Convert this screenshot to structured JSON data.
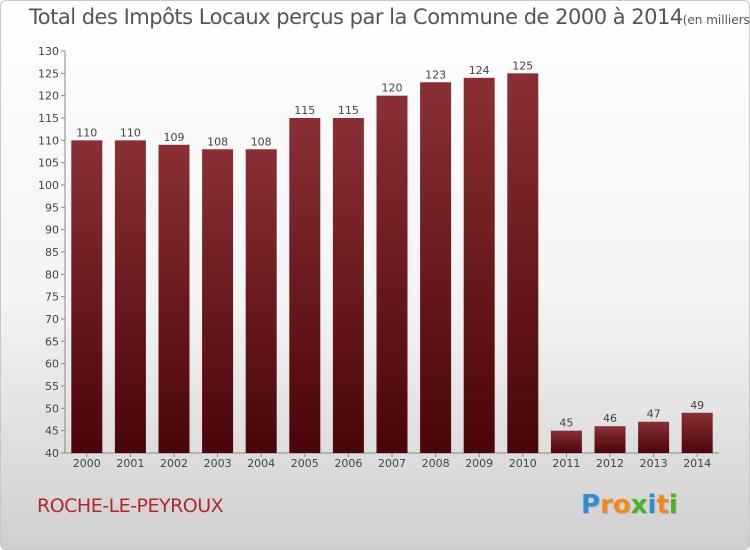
{
  "title": "Total des Impôts Locaux perçus par la Commune de 2000 à 2014",
  "title_unit": "(en milliers d'€)",
  "commune": "ROCHE-LE-PEYROUX",
  "logo": {
    "letters": [
      "P",
      "r",
      "o",
      "x",
      "i",
      "t",
      "i"
    ],
    "colors": [
      "#2e8fd0",
      "#f08a1c",
      "#f08a1c",
      "#4caf2a",
      "#2e8fd0",
      "#f08a1c",
      "#4caf2a"
    ]
  },
  "colors": {
    "bar_top": "#8a3035",
    "bar_bottom": "#4a0508",
    "axis": "#888888",
    "text": "#444444"
  },
  "chart_data": {
    "type": "bar",
    "categories": [
      "2000",
      "2001",
      "2002",
      "2003",
      "2004",
      "2005",
      "2006",
      "2007",
      "2008",
      "2009",
      "2010",
      "2011",
      "2012",
      "2013",
      "2014"
    ],
    "values": [
      110,
      110,
      109,
      108,
      108,
      115,
      115,
      120,
      123,
      124,
      125,
      45,
      46,
      47,
      49
    ],
    "ylim": [
      40,
      130
    ],
    "ytick_step": 5,
    "grid": false,
    "data_labels": true
  }
}
